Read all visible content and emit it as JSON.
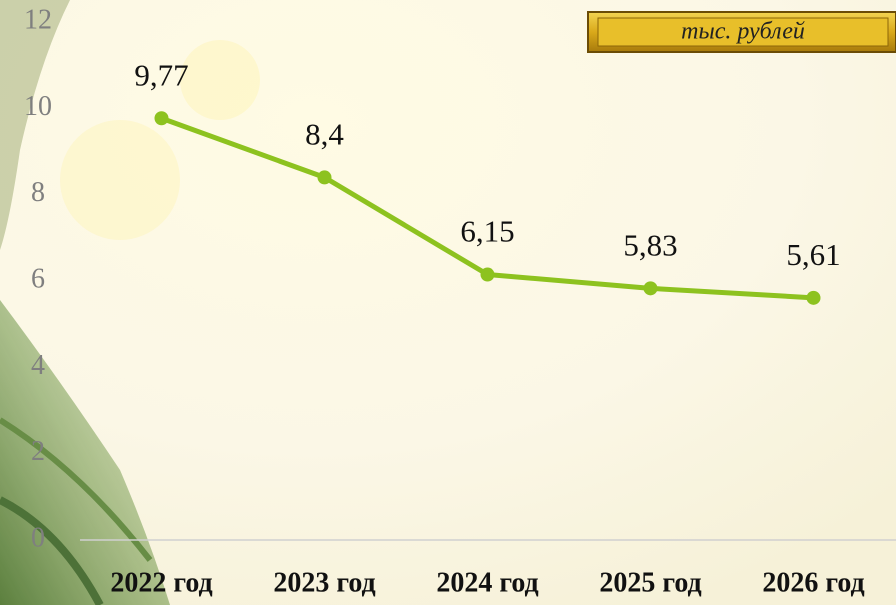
{
  "chart_data": {
    "type": "line",
    "unit": "тыс. рублей",
    "categories": [
      "2022 год",
      "2023 год",
      "2024 год",
      "2025 год",
      "2026 год"
    ],
    "values": [
      9.77,
      8.4,
      6.15,
      5.83,
      5.61
    ],
    "value_labels": [
      "9,77",
      "8,4",
      "6,15",
      "5,83",
      "5,61"
    ],
    "color": "#8dc21f",
    "ylim": [
      0,
      12
    ],
    "yticks": [
      0,
      2,
      4,
      6,
      8,
      10,
      12
    ],
    "grid": false
  }
}
